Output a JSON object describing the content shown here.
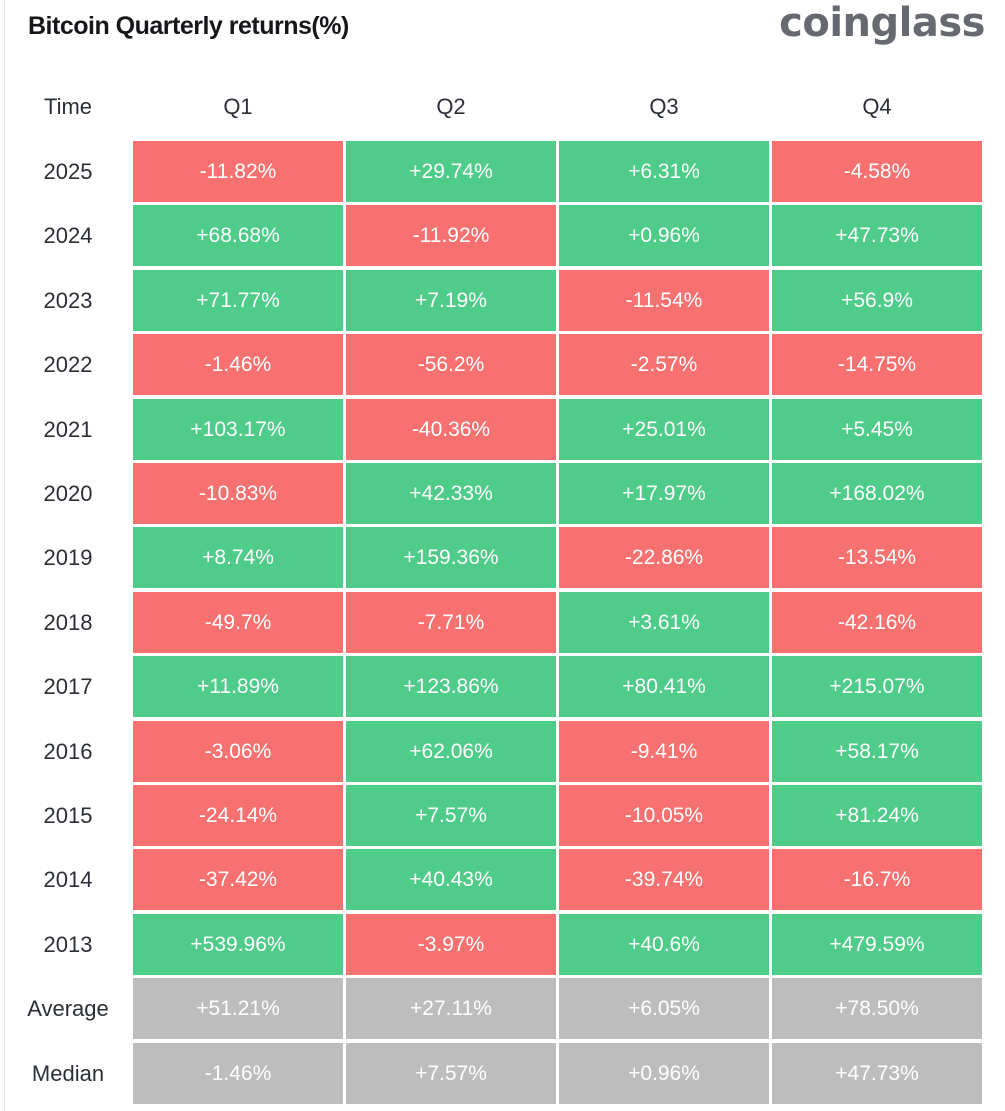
{
  "title": "Bitcoin Quarterly returns(%)",
  "logo": "coinglass",
  "colors": {
    "positive": "#4fcb8a",
    "negative": "#f87171",
    "summary": "#bdbdbd",
    "text": "#ffffff"
  },
  "chart_data": {
    "type": "heatmap",
    "title": "Bitcoin Quarterly returns(%)",
    "row_header": "Time",
    "columns": [
      "Q1",
      "Q2",
      "Q3",
      "Q4"
    ],
    "rows": [
      {
        "label": "2025",
        "values": [
          "-11.82%",
          "+29.74%",
          "+6.31%",
          "-4.58%"
        ]
      },
      {
        "label": "2024",
        "values": [
          "+68.68%",
          "-11.92%",
          "+0.96%",
          "+47.73%"
        ]
      },
      {
        "label": "2023",
        "values": [
          "+71.77%",
          "+7.19%",
          "-11.54%",
          "+56.9%"
        ]
      },
      {
        "label": "2022",
        "values": [
          "-1.46%",
          "-56.2%",
          "-2.57%",
          "-14.75%"
        ]
      },
      {
        "label": "2021",
        "values": [
          "+103.17%",
          "-40.36%",
          "+25.01%",
          "+5.45%"
        ]
      },
      {
        "label": "2020",
        "values": [
          "-10.83%",
          "+42.33%",
          "+17.97%",
          "+168.02%"
        ]
      },
      {
        "label": "2019",
        "values": [
          "+8.74%",
          "+159.36%",
          "-22.86%",
          "-13.54%"
        ]
      },
      {
        "label": "2018",
        "values": [
          "-49.7%",
          "-7.71%",
          "+3.61%",
          "-42.16%"
        ]
      },
      {
        "label": "2017",
        "values": [
          "+11.89%",
          "+123.86%",
          "+80.41%",
          "+215.07%"
        ]
      },
      {
        "label": "2016",
        "values": [
          "-3.06%",
          "+62.06%",
          "-9.41%",
          "+58.17%"
        ]
      },
      {
        "label": "2015",
        "values": [
          "-24.14%",
          "+7.57%",
          "-10.05%",
          "+81.24%"
        ]
      },
      {
        "label": "2014",
        "values": [
          "-37.42%",
          "+40.43%",
          "-39.74%",
          "-16.7%"
        ]
      },
      {
        "label": "2013",
        "values": [
          "+539.96%",
          "-3.97%",
          "+40.6%",
          "+479.59%"
        ]
      },
      {
        "label": "Average",
        "summary": true,
        "values": [
          "+51.21%",
          "+27.11%",
          "+6.05%",
          "+78.50%"
        ]
      },
      {
        "label": "Median",
        "summary": true,
        "values": [
          "-1.46%",
          "+7.57%",
          "+0.96%",
          "+47.73%"
        ]
      }
    ]
  }
}
